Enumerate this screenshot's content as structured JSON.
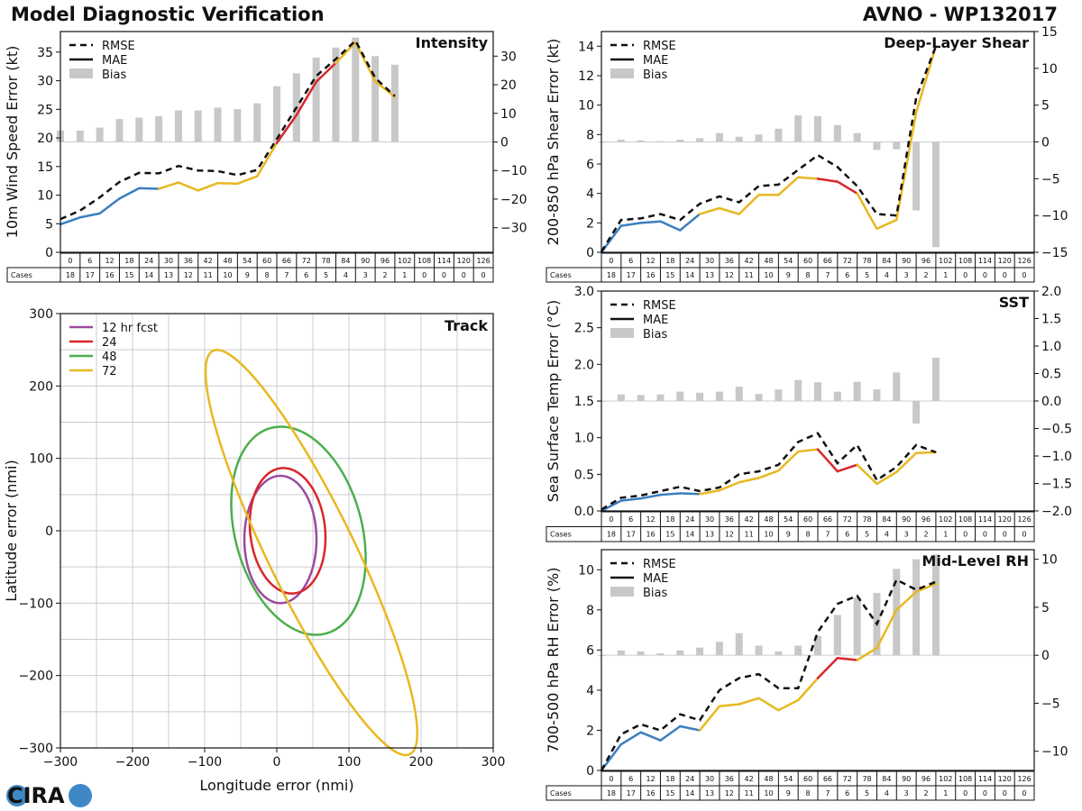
{
  "header": {
    "title_left": "Model Diagnostic Verification",
    "title_right": "AVNO - WP132017"
  },
  "logo": {
    "text": "CIRA",
    "colors": {
      "dark": "#2e3f73",
      "blue": "#3f88c5"
    }
  },
  "colors": {
    "rmse": "#111111",
    "bias": "#c8c8c8",
    "mae_blue": "#3a7fbf",
    "mae_yellow": "#e8b820",
    "mae_red": "#d9262a",
    "ell_purple": "#9b4a9e",
    "ell_red": "#d9262a",
    "ell_green": "#4cae4c",
    "ell_yellow": "#e8b820",
    "grid": "#cccccc"
  },
  "legend": {
    "rmse": "RMSE",
    "mae": "MAE",
    "bias": "Bias"
  },
  "cases_label": "Cases",
  "hours": [
    "0",
    "6",
    "12",
    "18",
    "24",
    "30",
    "36",
    "42",
    "48",
    "54",
    "60",
    "66",
    "72",
    "78",
    "84",
    "90",
    "96",
    "102",
    "108",
    "114",
    "120",
    "126"
  ],
  "cases": [
    "18",
    "17",
    "16",
    "15",
    "14",
    "13",
    "12",
    "11",
    "10",
    "9",
    "8",
    "7",
    "6",
    "5",
    "4",
    "3",
    "2",
    "1",
    "0",
    "0",
    "0",
    "0"
  ],
  "chart_data": [
    {
      "id": "intensity",
      "type": "line",
      "title": "Intensity",
      "ylabel": "10m Wind Speed Error (kt)",
      "x": [
        0,
        6,
        12,
        18,
        24,
        30,
        36,
        42,
        48,
        54,
        60,
        66,
        72,
        78,
        84,
        90,
        96,
        102
      ],
      "rmse": [
        5.8,
        7.3,
        9.6,
        12.3,
        13.9,
        13.8,
        15.1,
        14.3,
        14.2,
        13.5,
        14.4,
        19.8,
        25.3,
        30.8,
        33.8,
        37.0,
        30.5,
        27.3
      ],
      "mae": [
        4.9,
        6.1,
        6.8,
        9.4,
        11.2,
        11.1,
        12.2,
        10.8,
        12.1,
        12.0,
        13.3,
        19.1,
        24.0,
        29.8,
        33.1,
        36.7,
        29.9,
        27.2
      ],
      "mae_colors": [
        "b",
        "b",
        "b",
        "b",
        "b",
        "y",
        "y",
        "y",
        "y",
        "y",
        "y",
        "r",
        "r",
        "r",
        "y",
        "y",
        "y"
      ],
      "bias_x": [
        0,
        6,
        12,
        18,
        24,
        30,
        36,
        42,
        48,
        54,
        60,
        66,
        72,
        78,
        84,
        90,
        96,
        102
      ],
      "bias": [
        4,
        4,
        5,
        8,
        8.5,
        9,
        11,
        11,
        12,
        11.5,
        13.5,
        19.5,
        24,
        29.5,
        33,
        36.5,
        30,
        27
      ],
      "ylim": [
        0,
        38.6
      ],
      "yticks": [
        0,
        5,
        10,
        15,
        20,
        25,
        30,
        35
      ],
      "y2lim": [
        -38.6,
        38.6
      ],
      "y2ticks": [
        -30,
        -20,
        -10,
        0,
        10,
        20,
        30
      ]
    },
    {
      "id": "shear",
      "type": "line",
      "title": "Deep-Layer Shear",
      "ylabel": "200-850 hPa Shear Error (kt)",
      "x": [
        0,
        6,
        12,
        18,
        24,
        30,
        36,
        42,
        48,
        54,
        60,
        66,
        72,
        78,
        84,
        90,
        96,
        102
      ],
      "rmse": [
        0.05,
        2.2,
        2.3,
        2.6,
        2.2,
        3.3,
        3.8,
        3.4,
        4.5,
        4.6,
        5.6,
        6.6,
        5.8,
        4.5,
        2.6,
        2.5,
        10.5,
        14.0
      ],
      "mae": [
        0,
        1.8,
        2.0,
        2.1,
        1.5,
        2.6,
        3.0,
        2.6,
        3.9,
        3.9,
        5.1,
        5.0,
        4.8,
        4.0,
        1.6,
        2.2,
        9.5,
        14.0
      ],
      "mae_colors": [
        "b",
        "b",
        "b",
        "b",
        "b",
        "y",
        "y",
        "y",
        "y",
        "y",
        "y",
        "r",
        "r",
        "y",
        "y",
        "y",
        "y"
      ],
      "bias_x": [
        0,
        6,
        12,
        18,
        24,
        30,
        36,
        42,
        48,
        54,
        60,
        66,
        72,
        78,
        84,
        90,
        96,
        102
      ],
      "bias": [
        0,
        0.3,
        0.2,
        0.1,
        0.3,
        0.5,
        1.2,
        0.7,
        1.0,
        1.8,
        3.6,
        3.5,
        2.3,
        1.2,
        -1.1,
        -1.0,
        -9.3,
        -14.3
      ],
      "ylim": [
        0,
        15
      ],
      "yticks": [
        0,
        2,
        4,
        6,
        8,
        10,
        12,
        14
      ],
      "y2lim": [
        -15,
        15
      ],
      "y2ticks": [
        -15,
        -10,
        -5,
        0,
        5,
        10,
        15
      ]
    },
    {
      "id": "sst",
      "type": "line",
      "title": "SST",
      "ylabel": "Sea Surface Temp Error (°C)",
      "x": [
        0,
        6,
        12,
        18,
        24,
        30,
        36,
        42,
        48,
        54,
        60,
        66,
        72,
        78,
        84,
        90,
        96,
        102
      ],
      "rmse": [
        0.02,
        0.18,
        0.21,
        0.27,
        0.33,
        0.27,
        0.32,
        0.5,
        0.54,
        0.63,
        0.94,
        1.06,
        0.65,
        0.9,
        0.42,
        0.6,
        0.9,
        0.8
      ],
      "mae": [
        0,
        0.14,
        0.17,
        0.22,
        0.24,
        0.23,
        0.28,
        0.39,
        0.45,
        0.55,
        0.81,
        0.84,
        0.54,
        0.63,
        0.37,
        0.53,
        0.79,
        0.8
      ],
      "mae_colors": [
        "b",
        "b",
        "b",
        "b",
        "b",
        "y",
        "y",
        "y",
        "y",
        "y",
        "y",
        "r",
        "r",
        "y",
        "y",
        "y",
        "y"
      ],
      "bias_x": [
        0,
        6,
        12,
        18,
        24,
        30,
        36,
        42,
        48,
        54,
        60,
        66,
        72,
        78,
        84,
        90,
        96,
        102
      ],
      "bias": [
        0,
        0.12,
        0.11,
        0.12,
        0.17,
        0.15,
        0.17,
        0.26,
        0.13,
        0.21,
        0.38,
        0.34,
        0.17,
        0.35,
        0.21,
        0.52,
        -0.41,
        0.79
      ],
      "ylim": [
        0,
        3
      ],
      "yticks": [
        "0.0",
        "0.5",
        "1.0",
        "1.5",
        "2.0",
        "2.5",
        "3.0"
      ],
      "y2lim": [
        -2,
        2
      ],
      "y2ticks": [
        "−2.0",
        "−1.5",
        "−1.0",
        "−0.5",
        "0.0",
        "0.5",
        "1.0",
        "1.5",
        "2.0"
      ]
    },
    {
      "id": "rh",
      "type": "line",
      "title": "Mid-Level RH",
      "ylabel": "700-500 hPa RH Error (%)",
      "x": [
        0,
        6,
        12,
        18,
        24,
        30,
        36,
        42,
        48,
        54,
        60,
        66,
        72,
        78,
        84,
        90,
        96,
        102
      ],
      "rmse": [
        0,
        1.8,
        2.3,
        2.0,
        2.8,
        2.5,
        4.0,
        4.6,
        4.8,
        4.1,
        4.1,
        6.9,
        8.3,
        8.7,
        7.3,
        9.5,
        9.0,
        9.4
      ],
      "mae": [
        0,
        1.3,
        1.9,
        1.5,
        2.2,
        2.0,
        3.2,
        3.3,
        3.6,
        3.0,
        3.5,
        4.6,
        5.6,
        5.5,
        6.1,
        8.0,
        8.9,
        9.3
      ],
      "mae_colors": [
        "b",
        "b",
        "b",
        "b",
        "b",
        "y",
        "y",
        "y",
        "y",
        "y",
        "y",
        "r",
        "r",
        "y",
        "y",
        "y",
        "y"
      ],
      "bias_x": [
        0,
        6,
        12,
        18,
        24,
        30,
        36,
        42,
        48,
        54,
        60,
        66,
        72,
        78,
        84,
        90,
        96,
        102
      ],
      "bias": [
        0,
        0.5,
        0.4,
        0.2,
        0.5,
        0.8,
        1.4,
        2.3,
        1.0,
        0.4,
        1.0,
        2.0,
        4.2,
        6.0,
        6.5,
        9.0,
        10.0,
        10.5
      ],
      "ylim": [
        0,
        11
      ],
      "yticks": [
        0,
        2,
        4,
        6,
        8,
        10
      ],
      "y2lim": [
        -12,
        11
      ],
      "y2ticks": [
        -10,
        -5,
        0,
        5,
        10
      ]
    },
    {
      "id": "track",
      "type": "scatter",
      "title": "Track",
      "xlabel": "Longitude error (nmi)",
      "ylabel": "Latitude error (nmi)",
      "xlim": [
        -300,
        300
      ],
      "ylim": [
        -300,
        300
      ],
      "xticks": [
        -300,
        -200,
        -100,
        0,
        100,
        200,
        300
      ],
      "yticks": [
        -300,
        -200,
        -100,
        0,
        100,
        200,
        300
      ],
      "yticklabels": [
        "−300",
        "−200",
        "−100",
        "0",
        "100",
        "200",
        "300"
      ],
      "xticklabels": [
        "−300",
        "−200",
        "−100",
        "0",
        "100",
        "200",
        "300"
      ],
      "legend": [
        "12 hr fcst",
        "24",
        "48",
        "72"
      ],
      "ellipses": [
        {
          "name": "12 hr fcst",
          "cx": 5,
          "cy": -12,
          "rx": 50,
          "ry": 88,
          "rot_deg": 0
        },
        {
          "name": "24",
          "cx": 15,
          "cy": 0,
          "rx": 52,
          "ry": 87,
          "rot_deg": -6
        },
        {
          "name": "48",
          "cx": 30,
          "cy": 0,
          "rx": 88,
          "ry": 147,
          "rot_deg": -15
        },
        {
          "name": "72",
          "cx": 48,
          "cy": -30,
          "rx": 60,
          "ry": 310,
          "rot_deg": -26
        }
      ]
    }
  ]
}
